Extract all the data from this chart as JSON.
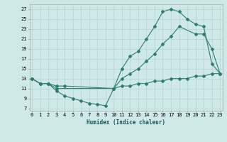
{
  "bg_color": "#cfe8e8",
  "grid_color": "#b0d0d0",
  "line_color": "#2e7d6e",
  "line_width": 0.8,
  "marker_size": 2.0,
  "line1_x": [
    0,
    1,
    2,
    3,
    10,
    11,
    12,
    13,
    14,
    15,
    16,
    17,
    18,
    19,
    20,
    21,
    22,
    23
  ],
  "line1_y": [
    13,
    12,
    12,
    11,
    11,
    15,
    17.5,
    18.5,
    21,
    23.5,
    26.5,
    27,
    26.5,
    25,
    24,
    23.5,
    16,
    14
  ],
  "line2_x": [
    0,
    1,
    2,
    3,
    4,
    10,
    11,
    12,
    13,
    14,
    15,
    16,
    17,
    18,
    20,
    21,
    22,
    23
  ],
  "line2_y": [
    13,
    12,
    12,
    11.5,
    11.5,
    11,
    13,
    14,
    15,
    16.5,
    18,
    20,
    21.5,
    23.5,
    22,
    22,
    19,
    14
  ],
  "line3_x": [
    0,
    1,
    2,
    3,
    4,
    5,
    6,
    7,
    8,
    9,
    10,
    11,
    12,
    13,
    14,
    15,
    16,
    17,
    18,
    19,
    20,
    21,
    22,
    23
  ],
  "line3_y": [
    13,
    12,
    12,
    10.5,
    9.5,
    9,
    8.5,
    8,
    7.8,
    7.5,
    11,
    11.5,
    11.5,
    12,
    12,
    12.5,
    12.5,
    13,
    13,
    13,
    13.5,
    13.5,
    14,
    14
  ],
  "xlim": [
    -0.3,
    23.3
  ],
  "ylim": [
    6.5,
    28
  ],
  "yticks": [
    7,
    9,
    11,
    13,
    15,
    17,
    19,
    21,
    23,
    25,
    27
  ],
  "xticks": [
    0,
    1,
    2,
    3,
    4,
    5,
    6,
    7,
    8,
    9,
    10,
    11,
    12,
    13,
    14,
    15,
    16,
    17,
    18,
    19,
    20,
    21,
    22,
    23
  ],
  "xlabel": "Humidex (Indice chaleur)",
  "xlabel_fontsize": 5.5,
  "tick_fontsize": 5.0,
  "figsize": [
    3.2,
    2.0
  ],
  "dpi": 100
}
